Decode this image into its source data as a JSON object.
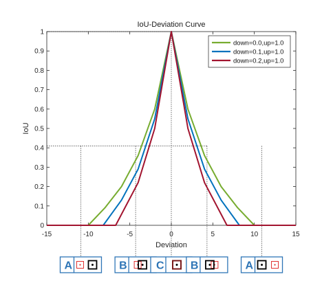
{
  "chart_data": {
    "type": "line",
    "title": "IoU-Deviation Curve",
    "xlabel": "Deviation",
    "ylabel": "IoU",
    "xlim": [
      -15,
      15
    ],
    "ylim": [
      0,
      1
    ],
    "xticks": [
      "-15",
      "-10",
      "-5",
      "0",
      "5",
      "10",
      "15"
    ],
    "xtick_values": [
      -15,
      -10,
      -5,
      0,
      5,
      10,
      15
    ],
    "yticks": [
      "0",
      "0.1",
      "0.2",
      "0.3",
      "0.4",
      "0.5",
      "0.6",
      "0.7",
      "0.8",
      "0.9",
      "1"
    ],
    "ytick_values": [
      0,
      0.1,
      0.2,
      0.3,
      0.4,
      0.5,
      0.6,
      0.7,
      0.8,
      0.9,
      1
    ],
    "grid": false,
    "legend_position": "top-right",
    "series": [
      {
        "name": "down=0.0,up=1.0",
        "color": "#77ac30",
        "x": [
          -15,
          -10,
          -8,
          -6,
          -4,
          -2,
          0,
          2,
          4,
          6,
          8,
          10,
          15
        ],
        "y": [
          0,
          0,
          0.09,
          0.2,
          0.36,
          0.6,
          1,
          0.6,
          0.36,
          0.2,
          0.09,
          0,
          0
        ]
      },
      {
        "name": "down=0.1,up=1.0",
        "color": "#0072bd",
        "x": [
          -15,
          -8.2,
          -6,
          -4,
          -2,
          0,
          2,
          4,
          6,
          8.2,
          15
        ],
        "y": [
          0,
          0,
          0.13,
          0.29,
          0.55,
          1,
          0.55,
          0.29,
          0.13,
          0,
          0
        ]
      },
      {
        "name": "down=0.2,up=1.0",
        "color": "#a2142f",
        "x": [
          -15,
          -6.7,
          -4,
          -2,
          0,
          2,
          4,
          6.7,
          15
        ],
        "y": [
          0,
          0,
          0.22,
          0.5,
          1,
          0.5,
          0.22,
          0,
          0
        ]
      }
    ],
    "reference_lines": [
      {
        "type": "horizontal",
        "y": 1,
        "x_from": -15,
        "x_to": 0
      },
      {
        "type": "horizontal",
        "y": 0.41,
        "x_from": -15,
        "x_to": 4.3
      },
      {
        "type": "vertical",
        "x": -10.9
      },
      {
        "type": "vertical",
        "x": -4.3
      },
      {
        "type": "vertical",
        "x": 0
      },
      {
        "type": "vertical",
        "x": 4.3
      },
      {
        "type": "vertical",
        "x": 10.9
      }
    ],
    "panels": [
      {
        "letter": "A",
        "red_box": "left",
        "center_offset": 0,
        "box_size": "small"
      },
      {
        "letter": "B",
        "red_box": "left",
        "center_offset": 0.25,
        "box_size": "small"
      },
      {
        "letter": "C",
        "red_box": "same",
        "center_offset": 0,
        "box_size": "small"
      },
      {
        "letter": "B",
        "red_box": "right",
        "center_offset": -0.25,
        "box_size": "small"
      },
      {
        "letter": "A",
        "red_box": "right",
        "center_offset": 0,
        "box_size": "small"
      }
    ]
  }
}
